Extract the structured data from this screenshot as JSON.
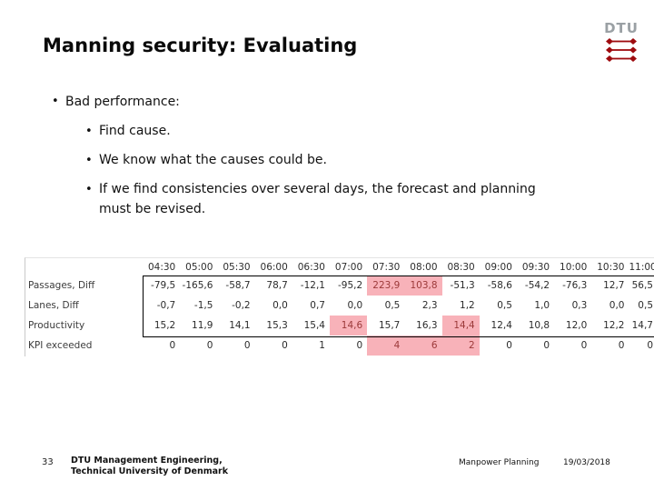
{
  "slide": {
    "title": "Manning security: Evaluating",
    "logo": {
      "text": "DTU",
      "red": "#9e0b0f",
      "gray": "#9aa0a4"
    },
    "bullets": {
      "level1": "Bad performance:",
      "level2": [
        {
          "lines": [
            "Find cause."
          ]
        },
        {
          "lines": [
            "We know what the causes could be."
          ]
        },
        {
          "lines": [
            "If we find consistencies over several days, the forecast and planning",
            "must be revised."
          ]
        }
      ]
    }
  },
  "table": {
    "columns": [
      "04:30",
      "05:00",
      "05:30",
      "06:00",
      "06:30",
      "07:00",
      "07:30",
      "08:00",
      "08:30",
      "09:00",
      "09:30",
      "10:00",
      "10:30",
      "11:00"
    ],
    "rows": [
      {
        "label": "Passages, Diff",
        "values": [
          "-79,5",
          "-165,6",
          "-58,7",
          "78,7",
          "-12,1",
          "-95,2",
          "223,9",
          "103,8",
          "-51,3",
          "-58,6",
          "-54,2",
          "-76,3",
          "12,7",
          "56,5"
        ],
        "highlight": [
          6,
          7
        ]
      },
      {
        "label": "Lanes, Diff",
        "values": [
          "-0,7",
          "-1,5",
          "-0,2",
          "0,0",
          "0,7",
          "0,0",
          "0,5",
          "2,3",
          "1,2",
          "0,5",
          "1,0",
          "0,3",
          "0,0",
          "0,5"
        ],
        "highlight": []
      },
      {
        "label": "Productivity",
        "values": [
          "15,2",
          "11,9",
          "14,1",
          "15,3",
          "15,4",
          "14,6",
          "15,7",
          "16,3",
          "14,4",
          "12,4",
          "10,8",
          "12,0",
          "12,2",
          "14,7"
        ],
        "highlight": [
          5,
          8
        ]
      },
      {
        "label": "KPI exceeded",
        "values": [
          "0",
          "0",
          "0",
          "0",
          "1",
          "0",
          "4",
          "6",
          "2",
          "0",
          "0",
          "0",
          "0",
          "0"
        ],
        "highlight": [
          6,
          7,
          8
        ]
      }
    ],
    "highlight_fill": "#f8b2b9",
    "highlight_text": "#9c3a3a"
  },
  "footer": {
    "page_number": "33",
    "affiliation_lines": [
      "DTU Management Engineering,",
      "Technical University of Denmark"
    ],
    "context": "Manpower Planning",
    "date": "19/03/2018"
  }
}
